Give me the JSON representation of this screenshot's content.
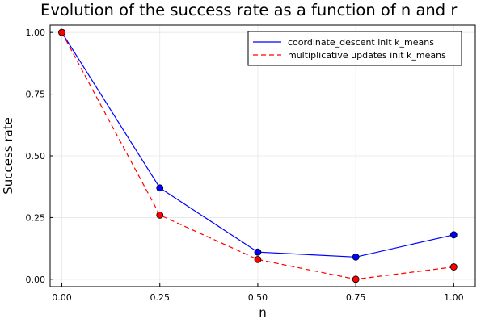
{
  "chart_data": {
    "type": "line",
    "title": "Evolution of the success rate as a function of n and r",
    "xlabel": "n",
    "ylabel": "Success rate",
    "xlim": [
      -0.03,
      1.055
    ],
    "ylim": [
      -0.03,
      1.03
    ],
    "x_ticks": [
      "0.00",
      "0.25",
      "0.50",
      "0.75",
      "1.00"
    ],
    "y_ticks": [
      "0.00",
      "0.25",
      "0.50",
      "0.75",
      "1.00"
    ],
    "grid": true,
    "legend_position": "top-right",
    "x": [
      0.0,
      0.25,
      0.5,
      0.75,
      1.0
    ],
    "series": [
      {
        "name": "coordinate_descent init k_means",
        "values": [
          1.0,
          0.37,
          0.11,
          0.09,
          0.18
        ],
        "color": "#0000ff",
        "line_style": "solid",
        "marker": "circle",
        "marker_color": "#0000ff"
      },
      {
        "name": "multiplicative updates init k_means",
        "values": [
          1.0,
          0.26,
          0.08,
          0.0,
          0.05
        ],
        "color": "#ff0000",
        "line_style": "dashed",
        "marker": "circle",
        "marker_color": "#ff0000"
      }
    ]
  }
}
